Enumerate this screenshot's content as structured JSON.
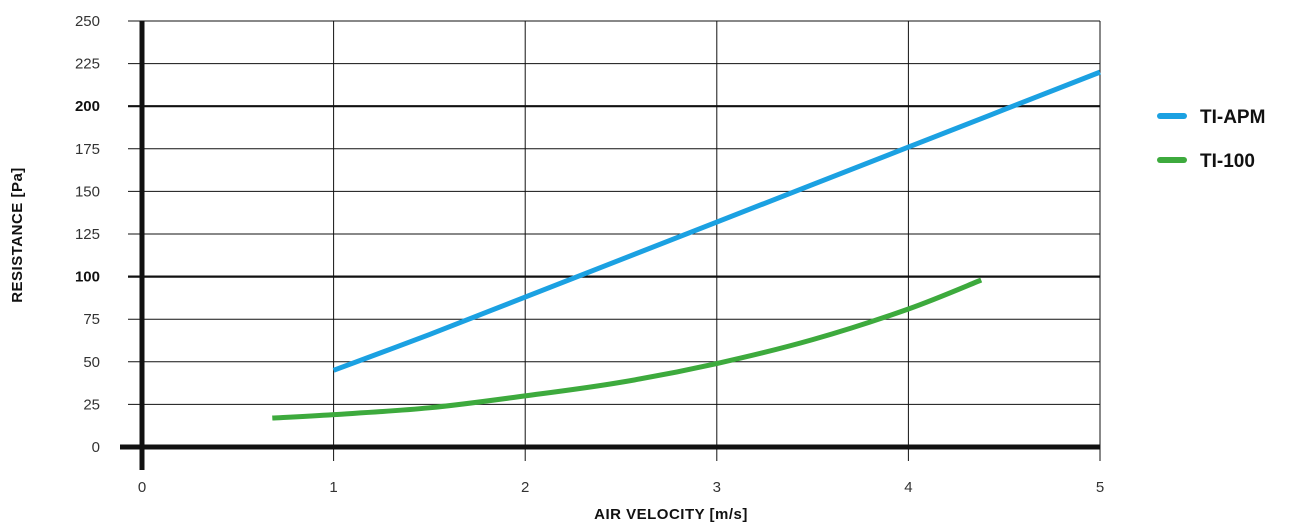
{
  "chart_data": {
    "type": "line",
    "xlabel": "AIR VELOCITY [m/s]",
    "ylabel": "RESISTANCE [Pa]",
    "xlim": [
      0,
      5
    ],
    "ylim": [
      0,
      250
    ],
    "x_ticks": [
      0,
      1,
      2,
      3,
      4,
      5
    ],
    "y_ticks": [
      0,
      25,
      50,
      75,
      100,
      125,
      150,
      175,
      200,
      225,
      250
    ],
    "y_ticks_bold": [
      100,
      200
    ],
    "grid": true,
    "legend_position": "right",
    "series": [
      {
        "name": "TI-APM",
        "color": "#1ba1e2",
        "x": [
          1,
          1.5,
          2,
          2.5,
          3,
          3.5,
          4,
          4.5,
          5
        ],
        "y": [
          45,
          66,
          88,
          110,
          132,
          154,
          176,
          198,
          220
        ]
      },
      {
        "name": "TI-100",
        "color": "#3daa3d",
        "x": [
          0.68,
          1,
          1.5,
          2,
          2.5,
          3,
          3.5,
          4,
          4.38
        ],
        "y": [
          17,
          19,
          23,
          30,
          38,
          49,
          63,
          81,
          98
        ]
      }
    ]
  }
}
